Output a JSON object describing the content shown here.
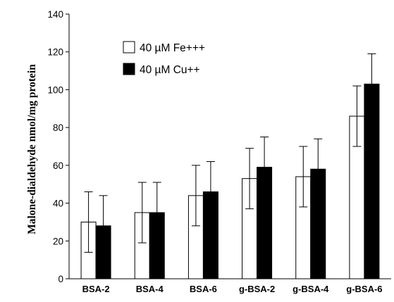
{
  "chart_data": {
    "type": "bar",
    "ylabel": "Malone-dialdehyde nmol/mg protein",
    "xlabel": "",
    "ylim": [
      0,
      140
    ],
    "yticks": [
      0,
      20,
      40,
      60,
      80,
      100,
      120,
      140
    ],
    "categories": [
      "BSA-2",
      "BSA-4",
      "BSA-6",
      "g-BSA-2",
      "g-BSA-4",
      "g-BSA-6"
    ],
    "series": [
      {
        "name": "40 µM Fe+++",
        "color": "#ffffff",
        "values": [
          30,
          35,
          44,
          53,
          54,
          86
        ],
        "errors": [
          16,
          16,
          16,
          16,
          16,
          16
        ]
      },
      {
        "name": "40 µM Cu++",
        "color": "#000000",
        "values": [
          28,
          35,
          46,
          59,
          58,
          103
        ],
        "errors": [
          16,
          16,
          16,
          16,
          16,
          16
        ]
      }
    ],
    "legend_position": "top-left",
    "grid": false,
    "error_bars": true
  }
}
